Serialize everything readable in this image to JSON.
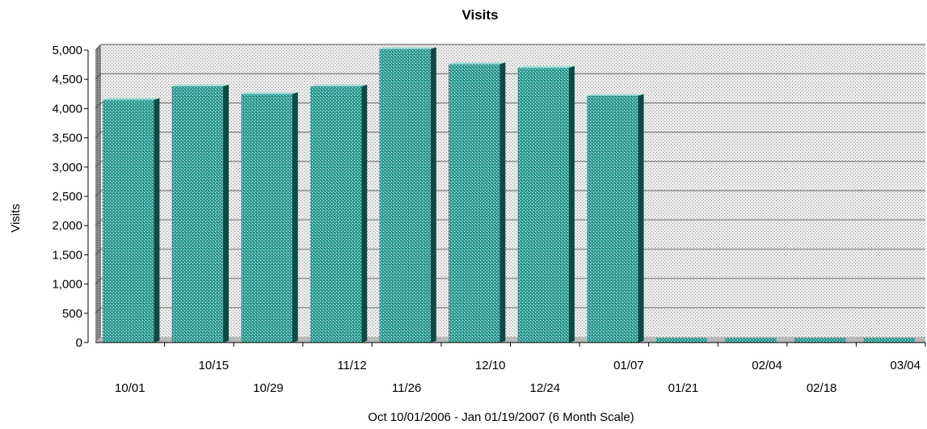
{
  "chart_data": {
    "type": "bar",
    "title": "Visits",
    "xlabel": "Oct 10/01/2006 - Jan 01/19/2007 (6 Month Scale)",
    "ylabel": "Visits",
    "categories": [
      "10/01",
      "10/15",
      "10/29",
      "11/12",
      "11/26",
      "12/10",
      "12/24",
      "01/07",
      "01/21",
      "02/04",
      "02/18",
      "03/04"
    ],
    "values": [
      4150,
      4380,
      4250,
      4380,
      5020,
      4760,
      4700,
      4220,
      0,
      0,
      0,
      0
    ],
    "ylim": [
      0,
      5000
    ],
    "yticks": [
      "0",
      "500",
      "1,000",
      "1,500",
      "2,000",
      "2,500",
      "3,000",
      "3,500",
      "4,000",
      "4,500",
      "5,000"
    ],
    "ytick_values": [
      0,
      500,
      1000,
      1500,
      2000,
      2500,
      3000,
      3500,
      4000,
      4500,
      5000
    ],
    "grid": true,
    "legend": "none",
    "colors": {
      "bar": "#2aa39a",
      "bar_light": "#9fded8",
      "bar_dark": "#0d4a45",
      "plot_bg": "#e6e6e6",
      "grid": "#8a8a8a",
      "floor": "#b8b8b8",
      "wall": "#7a7a7a"
    }
  }
}
